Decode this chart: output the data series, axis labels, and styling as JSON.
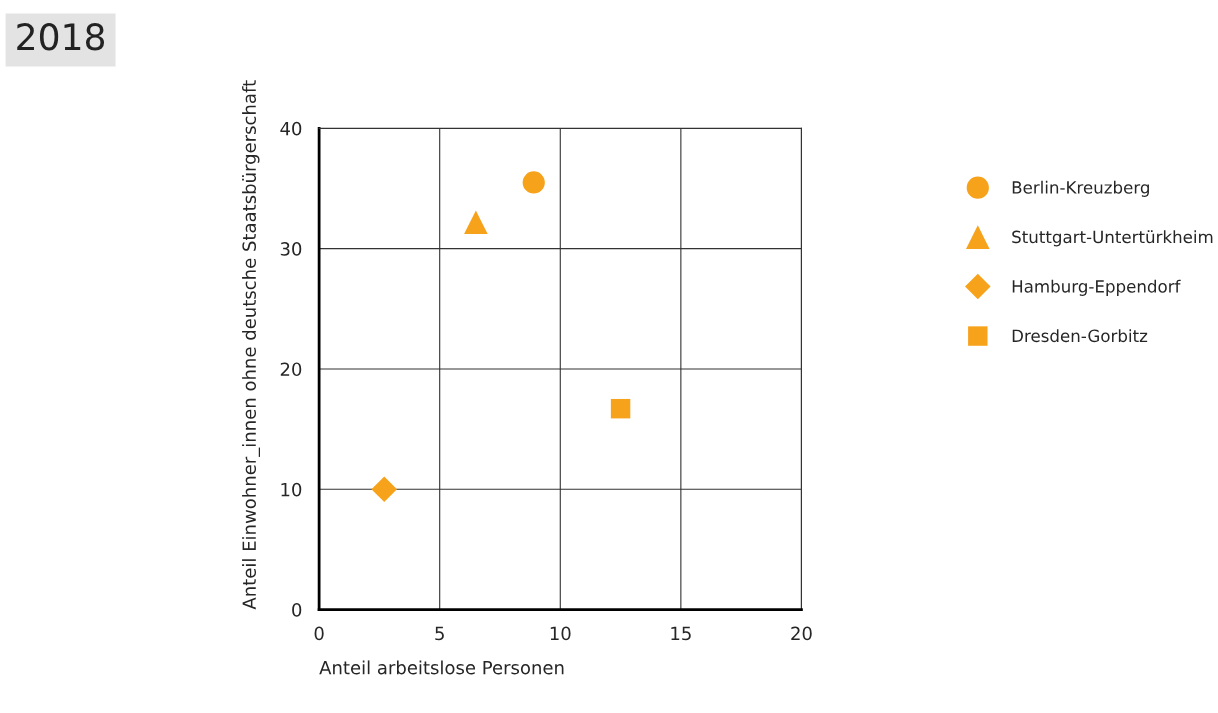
{
  "chart_data": {
    "type": "scatter",
    "title": "2018",
    "xlabel": "Anteil arbeitslose Personen",
    "ylabel": "Anteil Einwohner_innen ohne deutsche Staatsbürgerschaft",
    "xlim": [
      0,
      20
    ],
    "xticks": [
      0,
      5,
      10,
      15,
      20
    ],
    "ylim": [
      0,
      40
    ],
    "yticks": [
      0,
      10,
      20,
      30,
      40
    ],
    "grid": true,
    "legend": "right",
    "series": [
      {
        "name": "Berlin-Kreuzberg",
        "color": "#f7a21b",
        "marker": "circle",
        "x": [
          8.9
        ],
        "values": [
          35.5
        ]
      },
      {
        "name": "Stuttgart-Untertürkheim",
        "color": "#f7a21b",
        "marker": "triangle",
        "x": [
          6.5
        ],
        "values": [
          32.2
        ]
      },
      {
        "name": "Hamburg-Eppendorf",
        "color": "#f7a21b",
        "marker": "diamond",
        "x": [
          2.7
        ],
        "values": [
          10.0
        ]
      },
      {
        "name": "Dresden-Gorbitz",
        "color": "#f7a21b",
        "marker": "square",
        "x": [
          12.5
        ],
        "values": [
          16.7
        ]
      }
    ]
  }
}
